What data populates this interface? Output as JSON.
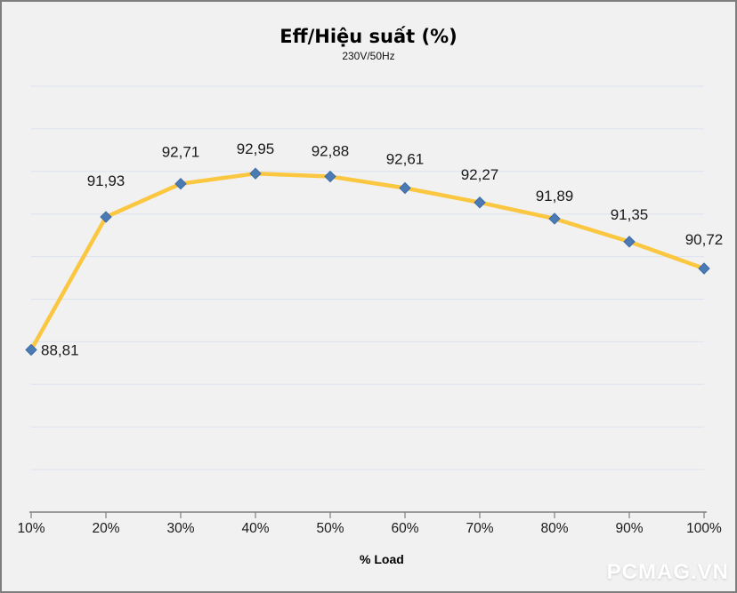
{
  "page": {
    "background": "#F1F1F1",
    "border_color": "#7E7E7E"
  },
  "chart_data": {
    "type": "line",
    "title": "Eff/Hiệu suất (%)",
    "subtitle": "230V/50Hz",
    "xlabel": "% Load",
    "ylabel": "",
    "categories": [
      "10%",
      "20%",
      "30%",
      "40%",
      "50%",
      "60%",
      "70%",
      "80%",
      "90%",
      "100%"
    ],
    "series": [
      {
        "name": "Eff",
        "values": [
          88.81,
          91.93,
          92.71,
          92.95,
          92.88,
          92.61,
          92.27,
          91.89,
          91.35,
          90.72
        ],
        "data_labels": [
          "88,81",
          "91,93",
          "92,71",
          "92,95",
          "92,88",
          "92,61",
          "92,27",
          "91,89",
          "91,35",
          "90,72"
        ]
      }
    ],
    "ylim": [
      85,
      95
    ],
    "gridline_step": 1,
    "grid": true,
    "legend": "none",
    "colors": {
      "line": "#FBC640",
      "marker_fill": "#4B7BB5",
      "marker_stroke": "#3E6BA4",
      "gridline": "#DCE2F0",
      "axis": "#808080",
      "tick_label": "#1A1A1A",
      "data_label": "#1A1A1A"
    }
  },
  "watermark": {
    "text": "PCMAG.VN",
    "color": "#FFFFFF"
  }
}
